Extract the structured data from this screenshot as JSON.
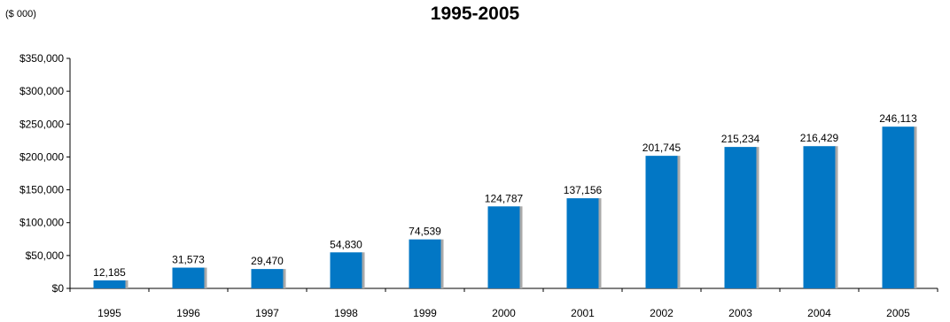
{
  "header": {
    "unit_label": "($ 000)",
    "title": "1995-2005"
  },
  "colors": {
    "bar": "#0277c5",
    "bar_shadow": "#a9a9a9",
    "axis": "#000000"
  },
  "chart_data": {
    "type": "bar",
    "title": "1995-2005",
    "xlabel": "",
    "ylabel": "($ 000)",
    "categories": [
      "1995",
      "1996",
      "1997",
      "1998",
      "1999",
      "2000",
      "2001",
      "2002",
      "2003",
      "2004",
      "2005"
    ],
    "values": [
      12185,
      31573,
      29470,
      54830,
      74539,
      124787,
      137156,
      201745,
      215234,
      216429,
      246113
    ],
    "value_labels": [
      "12,185",
      "31,573",
      "29,470",
      "54,830",
      "74,539",
      "124,787",
      "137,156",
      "201,745",
      "215,234",
      "216,429",
      "246,113"
    ],
    "ylim": [
      0,
      350000
    ],
    "yticks": [
      0,
      50000,
      100000,
      150000,
      200000,
      250000,
      300000,
      350000
    ],
    "ytick_labels": [
      "$0",
      "$50,000",
      "$100,000",
      "$150,000",
      "$200,000",
      "$250,000",
      "$300,000",
      "$350,000"
    ],
    "grid": false,
    "legend": "none"
  }
}
